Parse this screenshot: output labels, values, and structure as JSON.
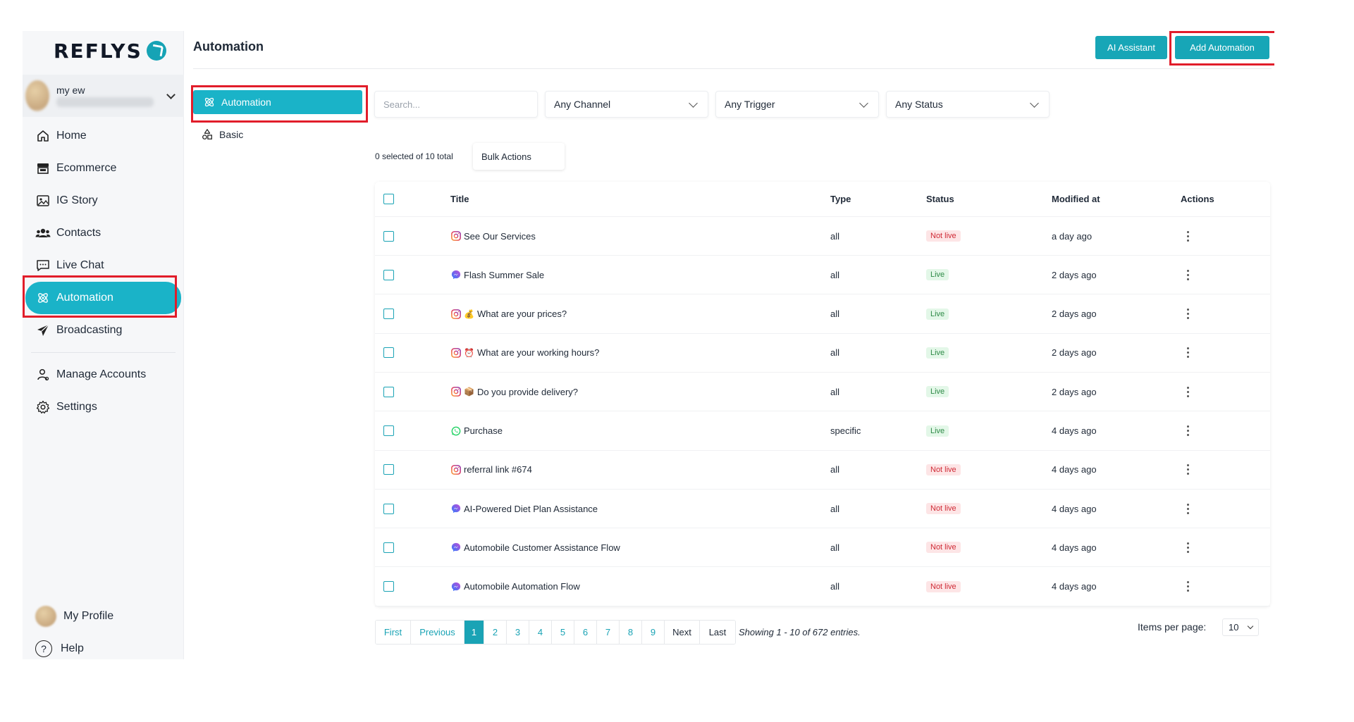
{
  "brand": "REFLYS",
  "account": {
    "name": "my ew"
  },
  "nav": {
    "items": [
      {
        "label": "Home",
        "icon": "home-icon"
      },
      {
        "label": "Ecommerce",
        "icon": "store-icon"
      },
      {
        "label": "IG Story",
        "icon": "image-icon"
      },
      {
        "label": "Contacts",
        "icon": "users-icon"
      },
      {
        "label": "Live Chat",
        "icon": "chat-icon"
      },
      {
        "label": "Automation",
        "icon": "atom-icon",
        "active": true
      },
      {
        "label": "Broadcasting",
        "icon": "send-icon"
      }
    ],
    "secondary": [
      {
        "label": "Manage Accounts",
        "icon": "user-icon"
      },
      {
        "label": "Settings",
        "icon": "gear-icon"
      }
    ],
    "bottom": [
      {
        "label": "My Profile",
        "icon": "avatar"
      },
      {
        "label": "Help",
        "icon": "help-icon"
      }
    ]
  },
  "header": {
    "title": "Automation",
    "ai_button": "AI Assistant",
    "add_button": "Add Automation"
  },
  "submenu": {
    "active": "Automation",
    "basic": "Basic"
  },
  "filters": {
    "search_placeholder": "Search...",
    "channel": "Any Channel",
    "trigger": "Any Trigger",
    "status": "Any Status"
  },
  "selection": {
    "count_text": "0 selected of 10 total",
    "bulk_label": "Bulk Actions"
  },
  "table": {
    "columns": [
      "Title",
      "Type",
      "Status",
      "Modified at",
      "Actions"
    ],
    "rows": [
      {
        "channel": "instagram",
        "emoji": "",
        "title": "See Our Services",
        "type": "all",
        "status": "Not live",
        "modified": "a day ago"
      },
      {
        "channel": "messenger",
        "emoji": "",
        "title": "Flash Summer Sale",
        "type": "all",
        "status": "Live",
        "modified": "2 days ago"
      },
      {
        "channel": "instagram",
        "emoji": "💰",
        "title": "What are your prices?",
        "type": "all",
        "status": "Live",
        "modified": "2 days ago"
      },
      {
        "channel": "instagram",
        "emoji": "⏰",
        "title": "What are your working hours?",
        "type": "all",
        "status": "Live",
        "modified": "2 days ago"
      },
      {
        "channel": "instagram",
        "emoji": "📦",
        "title": "Do you provide delivery?",
        "type": "all",
        "status": "Live",
        "modified": "2 days ago"
      },
      {
        "channel": "whatsapp",
        "emoji": "",
        "title": "Purchase",
        "type": "specific",
        "status": "Live",
        "modified": "4 days ago"
      },
      {
        "channel": "instagram",
        "emoji": "",
        "title": "referral link #674",
        "type": "all",
        "status": "Not live",
        "modified": "4 days ago"
      },
      {
        "channel": "messenger",
        "emoji": "",
        "title": "AI-Powered Diet Plan Assistance",
        "type": "all",
        "status": "Not live",
        "modified": "4 days ago"
      },
      {
        "channel": "messenger",
        "emoji": "",
        "title": "Automobile Customer Assistance Flow",
        "type": "all",
        "status": "Not live",
        "modified": "4 days ago"
      },
      {
        "channel": "messenger",
        "emoji": "",
        "title": "Automobile Automation Flow",
        "type": "all",
        "status": "Not live",
        "modified": "4 days ago"
      }
    ]
  },
  "pagination": {
    "first": "First",
    "previous": "Previous",
    "pages": [
      "1",
      "2",
      "3",
      "4",
      "5",
      "6",
      "7",
      "8",
      "9"
    ],
    "current": "1",
    "next": "Next",
    "last": "Last",
    "showing": "Showing 1 - 10 of 672 entries.",
    "items_label": "Items per page:",
    "items_value": "10"
  },
  "colors": {
    "accent": "#1ab3c8",
    "button": "#17a6b7",
    "live_bg": "#e3f7e8",
    "notlive_bg": "#fde5e6",
    "highlight": "#e11d2a"
  }
}
